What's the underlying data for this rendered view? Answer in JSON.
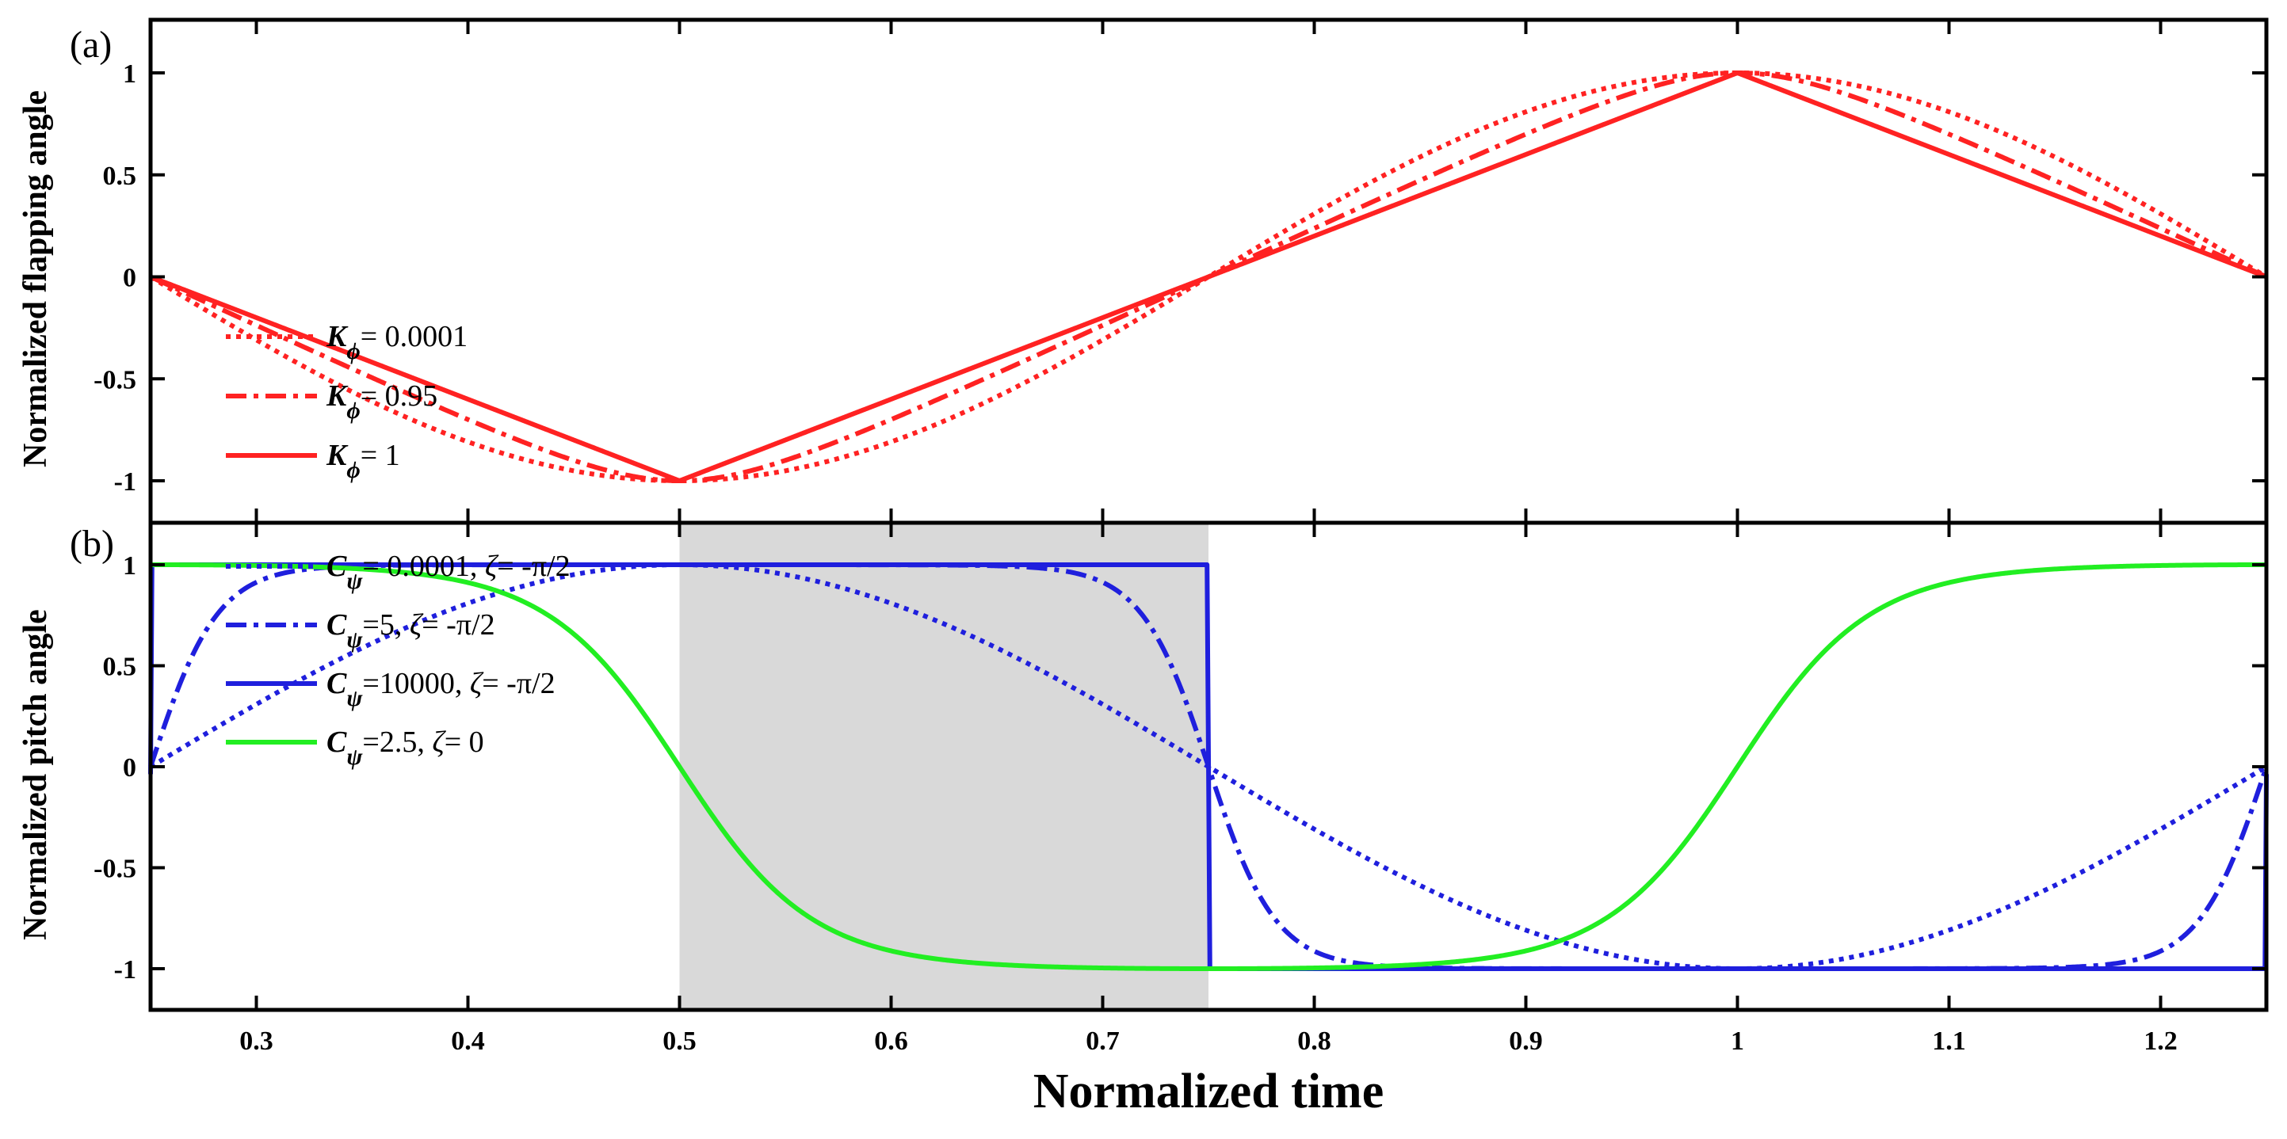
{
  "chart_data": [
    {
      "panel_label": "(a)",
      "type": "line",
      "xlabel": "",
      "ylabel": "Normalized flapping angle",
      "xlim": [
        0.25,
        1.25
      ],
      "ylim": [
        -1.15,
        1.15
      ],
      "y_ticks": [
        "-1",
        "-0.5",
        "0",
        "0.5",
        "1"
      ],
      "grid": false,
      "legend_position": "left",
      "series": [
        {
          "name": "K_phi = 0.0001",
          "legend_symbol": "K",
          "legend_subscript": "ϕ",
          "legend_value": "= 0.0001",
          "style": "dotted",
          "color": "#ff2222",
          "function": "flap",
          "K": 0.0001
        },
        {
          "name": "K_phi = 0.95",
          "legend_symbol": "K",
          "legend_subscript": "ϕ",
          "legend_value": "= 0.95",
          "style": "dashdot",
          "color": "#ff2222",
          "function": "flap",
          "K": 0.95
        },
        {
          "name": "K_phi = 1",
          "legend_symbol": "K",
          "legend_subscript": "ϕ",
          "legend_value": "= 1",
          "style": "solid",
          "color": "#ff2222",
          "function": "flap",
          "K": 1
        }
      ]
    },
    {
      "panel_label": "(b)",
      "type": "line",
      "xlabel": "Normalized time",
      "ylabel": "Normalized pitch angle",
      "xlim": [
        0.25,
        1.25
      ],
      "ylim": [
        -1.15,
        1.15
      ],
      "x_ticks": [
        "0.3",
        "0.4",
        "0.5",
        "0.6",
        "0.7",
        "0.8",
        "0.9",
        "1",
        "1.1",
        "1.2"
      ],
      "y_ticks": [
        "-1",
        "-0.5",
        "0",
        "0.5",
        "1"
      ],
      "shaded_region": {
        "x_start": 0.5,
        "x_end": 0.75,
        "color": "#d9d9d9"
      },
      "grid": false,
      "legend_position": "top-left",
      "series": [
        {
          "name": "C_psi = 0.0001, zeta = -pi/2",
          "legend_symbol": "C",
          "legend_subscript": "ψ",
          "legend_value": "= 0.0001, ",
          "legend_zeta": "ζ",
          "legend_zeta_value": "= -π/2",
          "style": "dotted",
          "color": "#1f1fdd",
          "function": "pitch",
          "C": 0.0001,
          "zeta": -1.5708
        },
        {
          "name": "C_psi = 5, zeta = -pi/2",
          "legend_symbol": "C",
          "legend_subscript": "ψ",
          "legend_value": "=5, ",
          "legend_zeta": "ζ",
          "legend_zeta_value": "= -π/2",
          "style": "dashdot",
          "color": "#1f1fdd",
          "function": "pitch",
          "C": 5,
          "zeta": -1.5708
        },
        {
          "name": "C_psi = 10000, zeta = -pi/2",
          "legend_symbol": "C",
          "legend_subscript": "ψ",
          "legend_value": "=10000, ",
          "legend_zeta": "ζ",
          "legend_zeta_value": "= -π/2",
          "style": "solid",
          "color": "#1f1fdd",
          "function": "pitch",
          "C": 10000,
          "zeta": -1.5708
        },
        {
          "name": "C_psi = 2.5, zeta = 0",
          "legend_symbol": "C",
          "legend_subscript": "ψ",
          "legend_value": "=2.5, ",
          "legend_zeta": "ζ",
          "legend_zeta_value": "= 0",
          "style": "solid",
          "color": "#22ee22",
          "function": "pitch",
          "C": 2.5,
          "zeta": 0
        }
      ]
    }
  ]
}
